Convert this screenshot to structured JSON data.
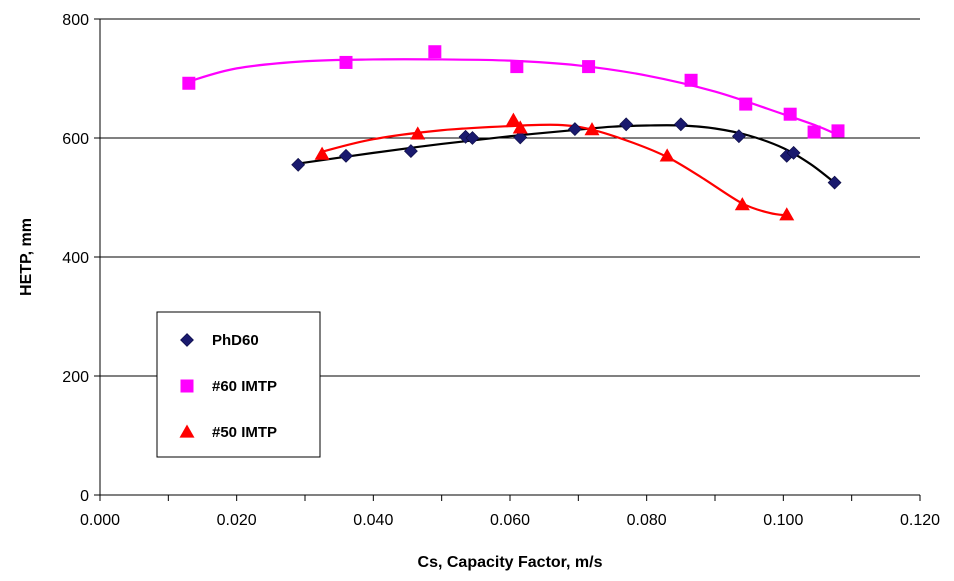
{
  "chart_data": {
    "type": "scatter",
    "title": "",
    "xlabel": "Cs, Capacity Factor, m/s",
    "ylabel": "HETP, mm",
    "xlim": [
      0.0,
      0.12
    ],
    "ylim": [
      0,
      800
    ],
    "x_ticks": [
      "0.000",
      "0.020",
      "0.040",
      "0.060",
      "0.080",
      "0.100",
      "0.120"
    ],
    "y_ticks": [
      "0",
      "200",
      "400",
      "600",
      "800"
    ],
    "grid": "horizontal",
    "legend_position": "left-middle",
    "series": [
      {
        "name": "PhD60",
        "marker": "diamond",
        "color": "#1a1a6e",
        "line_color": "#000000",
        "x": [
          0.029,
          0.036,
          0.0455,
          0.0535,
          0.0545,
          0.0615,
          0.0695,
          0.077,
          0.085,
          0.0935,
          0.1005,
          0.1015,
          0.1075
        ],
        "y": [
          555,
          570,
          578,
          602,
          600,
          601,
          615,
          623,
          623,
          603,
          570,
          575,
          525
        ]
      },
      {
        "name": "#60 IMTP",
        "marker": "square",
        "color": "#ff00ff",
        "line_color": "#ff00ff",
        "x": [
          0.013,
          0.036,
          0.049,
          0.061,
          0.0715,
          0.0865,
          0.0945,
          0.101,
          0.1045,
          0.108
        ],
        "y": [
          692,
          727,
          745,
          720,
          720,
          697,
          657,
          640,
          610,
          612
        ]
      },
      {
        "name": "#50 IMTP",
        "marker": "triangle",
        "color": "#ff0000",
        "line_color": "#ff0000",
        "x": [
          0.0325,
          0.0465,
          0.0605,
          0.0615,
          0.072,
          0.083,
          0.094,
          0.1005
        ],
        "y": [
          573,
          607,
          630,
          617,
          614,
          570,
          488,
          471
        ]
      }
    ],
    "fit_curves": [
      {
        "series": "PhD60",
        "x": [
          0.029,
          0.04,
          0.05,
          0.06,
          0.07,
          0.075,
          0.08,
          0.085,
          0.09,
          0.095,
          0.1,
          0.104,
          0.1075
        ],
        "y": [
          557,
          575,
          590,
          603,
          614,
          619,
          621,
          621,
          616,
          604,
          583,
          556,
          525
        ]
      },
      {
        "series": "#60 IMTP",
        "x": [
          0.013,
          0.02,
          0.03,
          0.04,
          0.05,
          0.06,
          0.07,
          0.08,
          0.09,
          0.1,
          0.105,
          0.108
        ],
        "y": [
          695,
          717,
          729,
          732,
          732,
          730,
          722,
          705,
          678,
          640,
          620,
          605
        ]
      },
      {
        "series": "#50 IMTP",
        "x": [
          0.0325,
          0.04,
          0.05,
          0.06,
          0.067,
          0.072,
          0.078,
          0.083,
          0.088,
          0.094,
          0.098,
          0.1005
        ],
        "y": [
          577,
          598,
          613,
          620,
          622,
          614,
          592,
          568,
          534,
          490,
          474,
          470
        ]
      }
    ]
  }
}
